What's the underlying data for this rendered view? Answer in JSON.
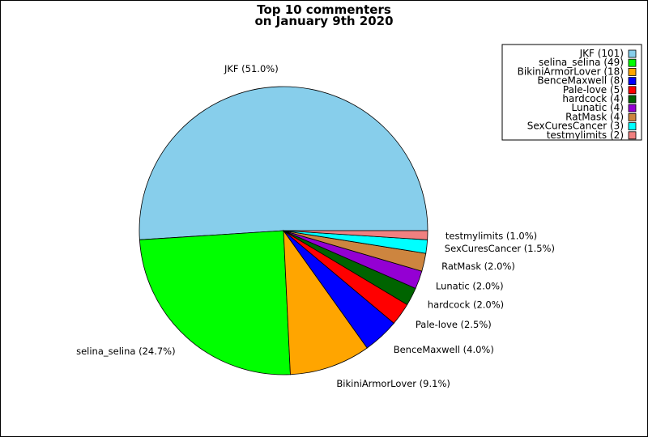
{
  "chart_data": {
    "type": "pie",
    "title_line1": "Top 10 commenters",
    "title_line2": "on January 9th 2020",
    "slices": [
      {
        "name": "JKF",
        "count": 101,
        "percent": 51.0,
        "label": "JKF (51.0%)",
        "legend": "JKF (101)",
        "color": "#87ceeb"
      },
      {
        "name": "selina_selina",
        "count": 49,
        "percent": 24.7,
        "label": "selina_selina (24.7%)",
        "legend": "selina_selina (49)",
        "color": "#00ff00"
      },
      {
        "name": "BikiniArmorLover",
        "count": 18,
        "percent": 9.1,
        "label": "BikiniArmorLover (9.1%)",
        "legend": "BikiniArmorLover (18)",
        "color": "#ffa500"
      },
      {
        "name": "BenceMaxwell",
        "count": 8,
        "percent": 4.0,
        "label": "BenceMaxwell (4.0%)",
        "legend": "BenceMaxwell (8)",
        "color": "#0000ff"
      },
      {
        "name": "Pale-love",
        "count": 5,
        "percent": 2.5,
        "label": "Pale-love (2.5%)",
        "legend": "Pale-love (5)",
        "color": "#ff0000"
      },
      {
        "name": "hardcock",
        "count": 4,
        "percent": 2.0,
        "label": "hardcock (2.0%)",
        "legend": "hardcock (4)",
        "color": "#006400"
      },
      {
        "name": "Lunatic",
        "count": 4,
        "percent": 2.0,
        "label": "Lunatic (2.0%)",
        "legend": "Lunatic (4)",
        "color": "#9400d3"
      },
      {
        "name": "RatMask",
        "count": 4,
        "percent": 2.0,
        "label": "RatMask (2.0%)",
        "legend": "RatMask (4)",
        "color": "#cd853f"
      },
      {
        "name": "SexCuresCancer",
        "count": 3,
        "percent": 1.5,
        "label": "SexCuresCancer (1.5%)",
        "legend": "SexCuresCancer (3)",
        "color": "#00ffff"
      },
      {
        "name": "testmylimits",
        "count": 2,
        "percent": 1.0,
        "label": "testmylimits (1.0%)",
        "legend": "testmylimits (2)",
        "color": "#f08080"
      }
    ],
    "legend_placement": "top-right"
  }
}
